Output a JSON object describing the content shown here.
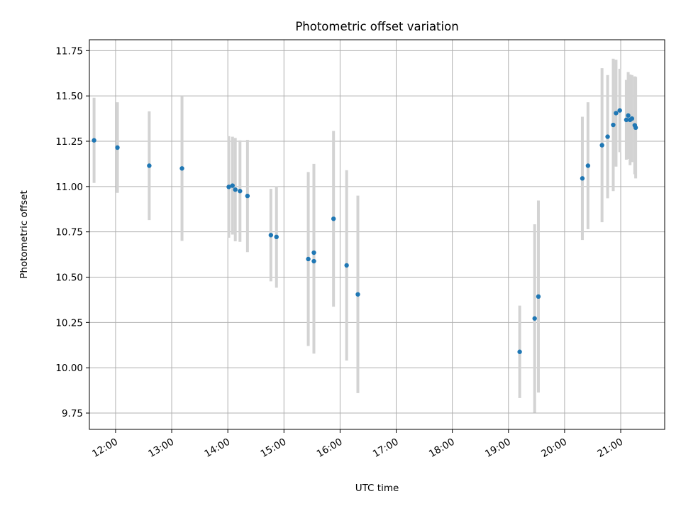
{
  "chart_data": {
    "type": "scatter",
    "title": "Photometric offset variation",
    "xlabel": "UTC time",
    "ylabel": "Photometric offset",
    "x_unit": "UTC time of day",
    "xlim": [
      "11:32",
      "21:47"
    ],
    "ylim": [
      9.66,
      11.81
    ],
    "grid": true,
    "xticks": [
      "12:00",
      "13:00",
      "14:00",
      "15:00",
      "16:00",
      "17:00",
      "18:00",
      "19:00",
      "20:00",
      "21:00"
    ],
    "yticks": [
      "9.75",
      "10.00",
      "10.25",
      "10.50",
      "10.75",
      "11.00",
      "11.25",
      "11.50",
      "11.75"
    ],
    "ytick_values": [
      9.75,
      10.0,
      10.25,
      10.5,
      10.75,
      11.0,
      11.25,
      11.5,
      11.75
    ],
    "point_color": "#1f77b4",
    "errorbar_color": "#d3d3d3",
    "points": [
      {
        "x": "11:37",
        "y": 11.255,
        "err": 0.235
      },
      {
        "x": "12:02",
        "y": 11.215,
        "err": 0.25
      },
      {
        "x": "12:36",
        "y": 11.115,
        "err": 0.3
      },
      {
        "x": "13:11",
        "y": 11.1,
        "err": 0.4
      },
      {
        "x": "14:01",
        "y": 10.998,
        "err": 0.28
      },
      {
        "x": "14:05",
        "y": 11.005,
        "err": 0.27
      },
      {
        "x": "14:08",
        "y": 10.983,
        "err": 0.285
      },
      {
        "x": "14:13",
        "y": 10.975,
        "err": 0.28
      },
      {
        "x": "14:21",
        "y": 10.948,
        "err": 0.31
      },
      {
        "x": "14:46",
        "y": 10.732,
        "err": 0.255
      },
      {
        "x": "14:52",
        "y": 10.722,
        "err": 0.28
      },
      {
        "x": "15:26",
        "y": 10.6,
        "err": 0.48
      },
      {
        "x": "15:32",
        "y": 10.635,
        "err": 0.49
      },
      {
        "x": "15:32",
        "y": 10.588,
        "err": 0.51
      },
      {
        "x": "15:53",
        "y": 10.822,
        "err": 0.485
      },
      {
        "x": "16:07",
        "y": 10.565,
        "err": 0.525
      },
      {
        "x": "16:19",
        "y": 10.405,
        "err": 0.545
      },
      {
        "x": "19:12",
        "y": 10.088,
        "err": 0.255
      },
      {
        "x": "19:28",
        "y": 10.272,
        "err": 0.52
      },
      {
        "x": "19:32",
        "y": 10.393,
        "err": 0.53
      },
      {
        "x": "20:19",
        "y": 11.045,
        "err": 0.34
      },
      {
        "x": "20:25",
        "y": 11.115,
        "err": 0.35
      },
      {
        "x": "20:40",
        "y": 11.228,
        "err": 0.425
      },
      {
        "x": "20:46",
        "y": 11.275,
        "err": 0.34
      },
      {
        "x": "20:52",
        "y": 11.34,
        "err": 0.365
      },
      {
        "x": "20:55",
        "y": 11.405,
        "err": 0.295
      },
      {
        "x": "20:59",
        "y": 11.42,
        "err": 0.23
      },
      {
        "x": "21:06",
        "y": 11.368,
        "err": 0.22
      },
      {
        "x": "21:08",
        "y": 11.392,
        "err": 0.24
      },
      {
        "x": "21:10",
        "y": 11.368,
        "err": 0.25
      },
      {
        "x": "21:12",
        "y": 11.375,
        "err": 0.24
      },
      {
        "x": "21:15",
        "y": 11.338,
        "err": 0.27
      },
      {
        "x": "21:16",
        "y": 11.325,
        "err": 0.28
      }
    ]
  }
}
